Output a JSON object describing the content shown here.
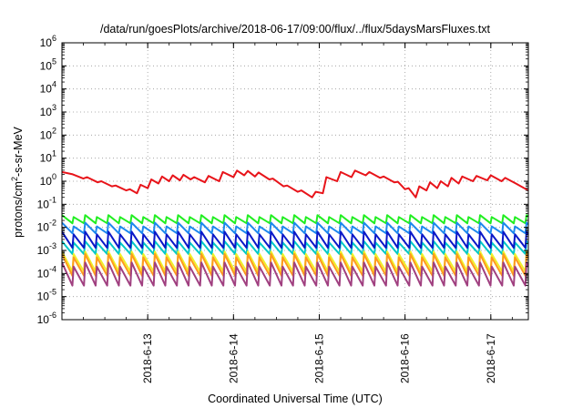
{
  "chart_data": {
    "type": "line",
    "title": "/data/run/goesPlots/archive/2018-06-17/09:00/flux/../flux/5daysMarsFluxes.txt",
    "xlabel": "Coordinated Universal Time (UTC)",
    "ylabel": {
      "base": "protons/cm",
      "sup": "2",
      "tail": "-s-sr-MeV"
    },
    "yscale": "log",
    "grid": "dotted",
    "legend": "none",
    "xlim": [
      "2018-06-12T00:00",
      "2018-06-17T10:30"
    ],
    "x_ticks": [
      "2018-6-13",
      "2018-6-14",
      "2018-6-15",
      "2018-6-16",
      "2018-6-17"
    ],
    "y_ticks": [
      {
        "base": "10",
        "exp": "-6"
      },
      {
        "base": "10",
        "exp": "-5"
      },
      {
        "base": "10",
        "exp": "-4"
      },
      {
        "base": "10",
        "exp": "-3"
      },
      {
        "base": "10",
        "exp": "-2"
      },
      {
        "base": "10",
        "exp": "-1"
      },
      {
        "base": "10",
        "exp": "0"
      },
      {
        "base": "10",
        "exp": "1"
      },
      {
        "base": "10",
        "exp": "2"
      },
      {
        "base": "10",
        "exp": "3"
      },
      {
        "base": "10",
        "exp": "4"
      },
      {
        "base": "10",
        "exp": "5"
      },
      {
        "base": "10",
        "exp": "6"
      }
    ],
    "ylim_exponent": [
      -6,
      6
    ],
    "series": [
      {
        "color": "#e8141a",
        "x": [
          "2018-06-12T00:00",
          "2018-06-12T03:00",
          "2018-06-12T06:00",
          "2018-06-12T07:00",
          "2018-06-12T10:00",
          "2018-06-12T11:00",
          "2018-06-12T14:00",
          "2018-06-12T15:00",
          "2018-06-12T18:00",
          "2018-06-12T19:00",
          "2018-06-12T21:00",
          "2018-06-12T22:00",
          "2018-06-13T00:00",
          "2018-06-13T01:00",
          "2018-06-13T03:00",
          "2018-06-13T04:00",
          "2018-06-13T06:00",
          "2018-06-13T07:00",
          "2018-06-13T09:00",
          "2018-06-13T10:00",
          "2018-06-13T12:00",
          "2018-06-13T13:00",
          "2018-06-13T16:00",
          "2018-06-13T17:00",
          "2018-06-13T20:00",
          "2018-06-13T21:00",
          "2018-06-14T00:00",
          "2018-06-14T01:00",
          "2018-06-14T03:00",
          "2018-06-14T04:00",
          "2018-06-14T06:00",
          "2018-06-14T07:00",
          "2018-06-14T10:00",
          "2018-06-14T11:00",
          "2018-06-14T14:00",
          "2018-06-14T15:00",
          "2018-06-14T18:00",
          "2018-06-14T19:00",
          "2018-06-14T22:00",
          "2018-06-14T23:00",
          "2018-06-15T01:00",
          "2018-06-15T02:00",
          "2018-06-15T05:00",
          "2018-06-15T06:00",
          "2018-06-15T09:00",
          "2018-06-15T10:00",
          "2018-06-15T13:00",
          "2018-06-15T14:00",
          "2018-06-15T17:00",
          "2018-06-15T18:00",
          "2018-06-15T21:00",
          "2018-06-15T22:00",
          "2018-06-16T00:00",
          "2018-06-16T01:00",
          "2018-06-16T03:00",
          "2018-06-16T04:00",
          "2018-06-16T06:00",
          "2018-06-16T07:00",
          "2018-06-16T09:00",
          "2018-06-16T10:00",
          "2018-06-16T12:00",
          "2018-06-16T13:00",
          "2018-06-16T15:00",
          "2018-06-16T16:00",
          "2018-06-16T19:00",
          "2018-06-16T20:00",
          "2018-06-16T23:00",
          "2018-06-17T00:00",
          "2018-06-17T03:00",
          "2018-06-17T04:00",
          "2018-06-17T07:00",
          "2018-06-17T10:30"
        ],
        "y": [
          2.5,
          2.0,
          1.3,
          1.5,
          0.9,
          1.0,
          0.6,
          0.65,
          0.4,
          0.45,
          0.3,
          0.7,
          0.5,
          1.2,
          0.8,
          1.6,
          1.0,
          1.8,
          1.1,
          1.9,
          1.2,
          1.5,
          0.9,
          1.7,
          1.0,
          2.5,
          1.5,
          2.9,
          1.8,
          2.8,
          1.6,
          2.4,
          1.2,
          1.3,
          0.6,
          0.65,
          0.35,
          0.4,
          0.2,
          0.35,
          0.3,
          1.5,
          1.0,
          2.5,
          1.5,
          2.9,
          1.8,
          2.5,
          1.4,
          1.6,
          0.9,
          0.95,
          0.45,
          0.5,
          0.2,
          0.6,
          0.4,
          0.9,
          0.5,
          1.0,
          0.6,
          1.4,
          0.8,
          1.6,
          1.0,
          1.7,
          1.1,
          1.8,
          1.0,
          1.4,
          0.8,
          0.4
        ]
      },
      {
        "color": "#22ee22",
        "pattern": true,
        "period_h": 3.25,
        "y_peak": 0.034,
        "y_trough": 0.015,
        "y_peak_alt": 0.028
      },
      {
        "color": "#1e88ee",
        "pattern": true,
        "period_h": 3.25,
        "y_peak": 0.016,
        "y_trough": 0.0055,
        "y_peak_alt": 0.011
      },
      {
        "color": "#00c8c8",
        "pattern": true,
        "period_h": 3.25,
        "y_peak": 0.0025,
        "y_trough": 0.0007,
        "y_peak_alt": 0.0022
      },
      {
        "color": "#0a18c8",
        "pattern": true,
        "period_h": 3.25,
        "y_peak": 0.0065,
        "y_trough": 0.0013,
        "y_peak_alt": 0.005
      },
      {
        "color": "#f0f028",
        "pattern": true,
        "period_h": 3.25,
        "y_peak": 0.0009,
        "y_trough": 0.00012,
        "y_peak_alt": 0.0007
      },
      {
        "color": "#ff9a1e",
        "pattern": true,
        "period_h": 3.25,
        "y_peak": 0.0007,
        "y_trough": 8e-05,
        "y_peak_alt": 0.0005
      },
      {
        "color": "#a04080",
        "pattern": true,
        "period_h": 3.25,
        "y_peak": 0.0003,
        "y_trough": 3e-05,
        "y_peak_alt": 0.0002
      }
    ]
  }
}
